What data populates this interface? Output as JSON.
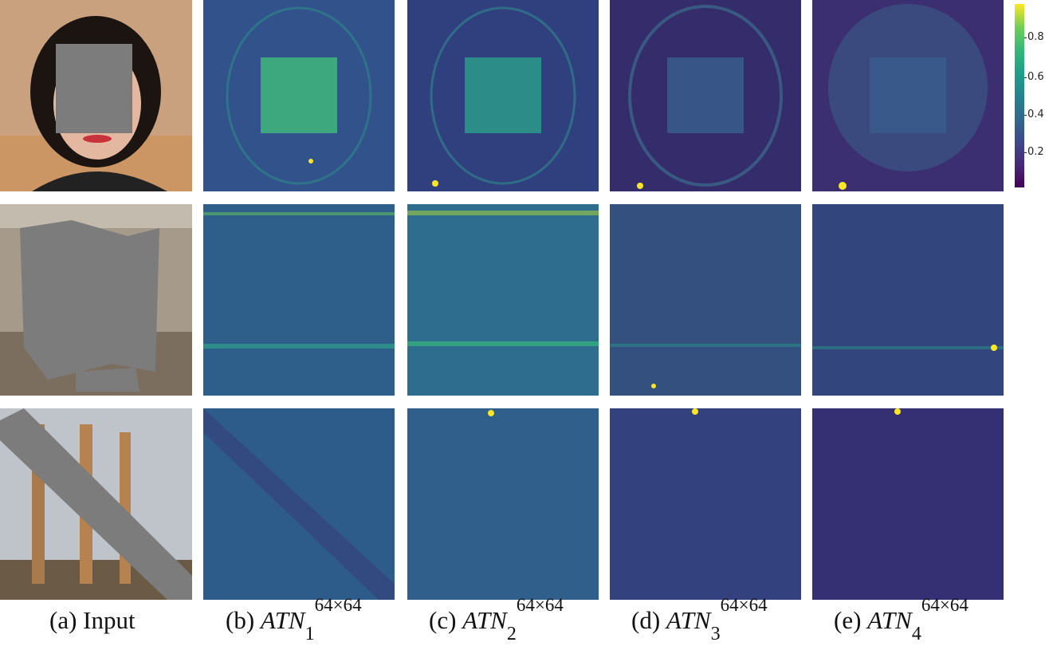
{
  "colorbar": {
    "ticks": [
      "0.8",
      "0.6",
      "0.4",
      "0.2"
    ]
  },
  "rows": [
    {
      "name": "face",
      "input_bg": "#caa07e",
      "map_tint": "#31588c"
    },
    {
      "name": "building",
      "input_bg": "#a3988a",
      "map_tint": "#2e5f8a"
    },
    {
      "name": "temple",
      "input_bg": "#b9bdc4",
      "map_tint": "#2f5a8c"
    }
  ],
  "captions": [
    {
      "prefix": "(a) Input",
      "var": "",
      "sub": "",
      "sup": ""
    },
    {
      "prefix": "(b) ",
      "var": "ATN",
      "sub": "1",
      "sup": "64×64"
    },
    {
      "prefix": "(c) ",
      "var": "ATN",
      "sub": "2",
      "sup": "64×64"
    },
    {
      "prefix": "(d) ",
      "var": "ATN",
      "sub": "3",
      "sup": "64×64"
    },
    {
      "prefix": "(e) ",
      "var": "ATN",
      "sub": "4",
      "sup": "64×64"
    }
  ]
}
